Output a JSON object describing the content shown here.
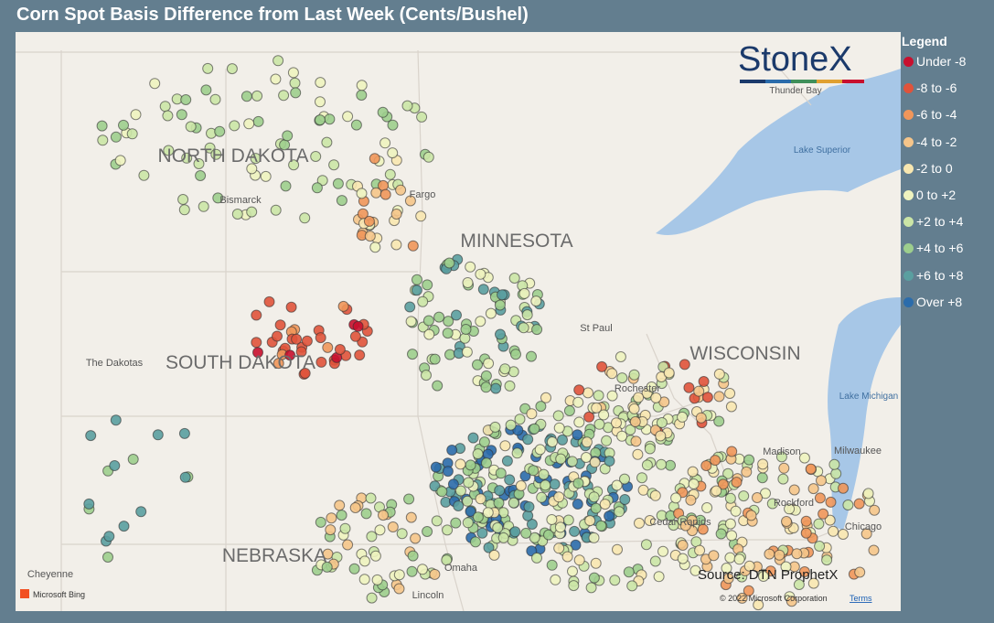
{
  "header": {
    "title": "Corn Spot Basis Difference from Last Week (Cents/Bushel)"
  },
  "legend": {
    "title": "Legend",
    "items": [
      {
        "label": "Under -8",
        "color": "#c8102e"
      },
      {
        "label": "-8 to -6",
        "color": "#e0533b"
      },
      {
        "label": "-6 to -4",
        "color": "#f0965a"
      },
      {
        "label": "-4 to -2",
        "color": "#f5c58a"
      },
      {
        "label": "-2 to 0",
        "color": "#f8e7b0"
      },
      {
        "label": "0 to +2",
        "color": "#eef3bf"
      },
      {
        "label": "+2 to +4",
        "color": "#cbe5a6"
      },
      {
        "label": "+4 to +6",
        "color": "#9dce8d"
      },
      {
        "label": "+6 to +8",
        "color": "#5a9fa0"
      },
      {
        "label": "Over +8",
        "color": "#2b6cab"
      }
    ]
  },
  "map": {
    "state_labels": [
      "NORTH DAKOTA",
      "MINNESOTA",
      "SOUTH DAKOTA",
      "WISCONSIN",
      "NEBRASKA"
    ],
    "place_labels": [
      "Bismarck",
      "Fargo",
      "The Dakotas",
      "St Paul",
      "Rochester",
      "Madison",
      "Milwaukee",
      "Rockford",
      "Chicago",
      "Cedar Rapids",
      "Omaha",
      "Lincoln",
      "Cheyenne",
      "Thunder Bay",
      "Lake Superior",
      "Lake Michigan"
    ],
    "source": "Source: DTN ProphetX",
    "logo": "StoneX",
    "provider": "Microsoft Bing",
    "copyright": "© 2022 Microsoft Corporation",
    "terms": "Terms"
  }
}
